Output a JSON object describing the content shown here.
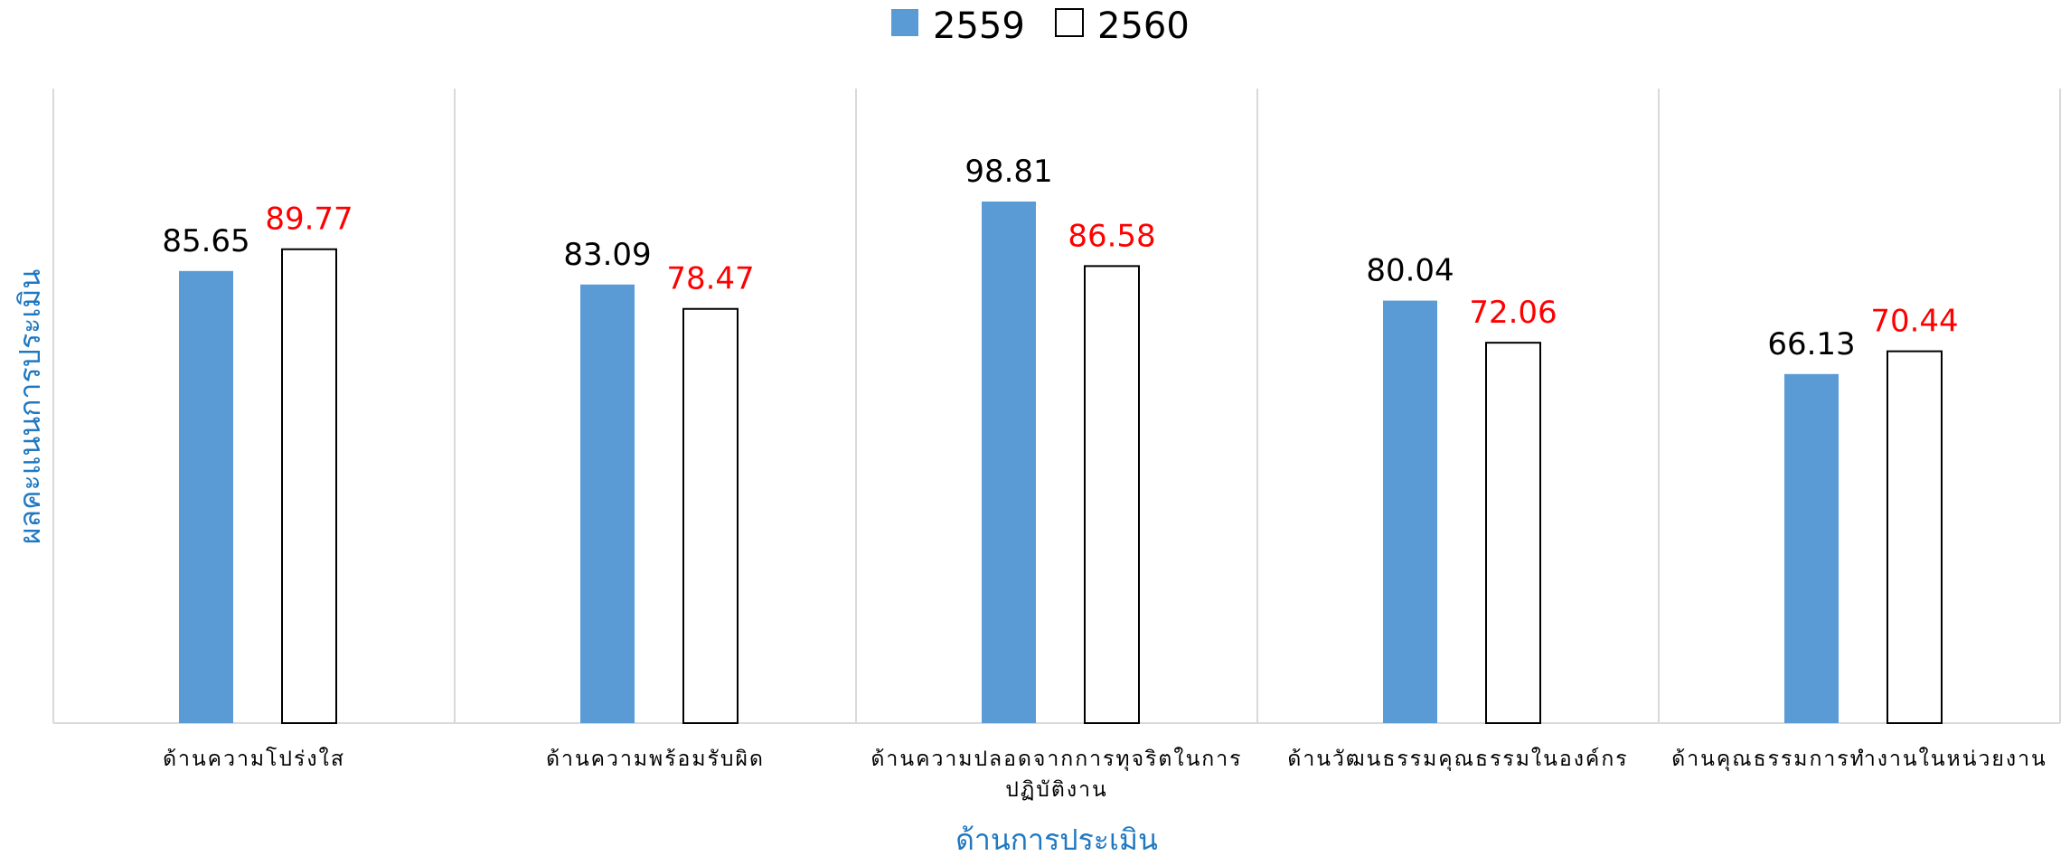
{
  "chart_data": {
    "type": "bar",
    "xlabel": "ด้านการประเมิน",
    "ylabel": "ผลคะแนนการประเมิน",
    "ylim": [
      0,
      110
    ],
    "grid": false,
    "legend": "top-center",
    "categories": [
      [
        "ด้านความโปร่งใส"
      ],
      [
        "ด้านความพร้อมรับผิด"
      ],
      [
        "ด้านความปลอดจากการทุจริตในการ",
        "ปฏิบัติงาน"
      ],
      [
        "ด้านวัฒนธรรมคุณธรรมในองค์กร"
      ],
      [
        "ด้านคุณธรรมการทำงานในหน่วยงาน"
      ]
    ],
    "series": [
      {
        "name": "2559",
        "values": [
          85.65,
          83.09,
          98.81,
          80.04,
          66.13
        ],
        "value_labels": [
          "85.65",
          "83.09",
          "98.81",
          "80.04",
          "66.13"
        ],
        "fill": "#5b9bd5",
        "stroke": "none",
        "label_color": "#000000"
      },
      {
        "name": "2560",
        "values": [
          89.77,
          78.47,
          86.58,
          72.06,
          70.44
        ],
        "value_labels": [
          "89.77",
          "78.47",
          "86.58",
          "72.06",
          "70.44"
        ],
        "fill": "#ffffff",
        "stroke": "#000000",
        "label_color": "#ff0000"
      }
    ],
    "axis_title_color": "#1f78c1",
    "separator_color": "#d9d9d9"
  }
}
